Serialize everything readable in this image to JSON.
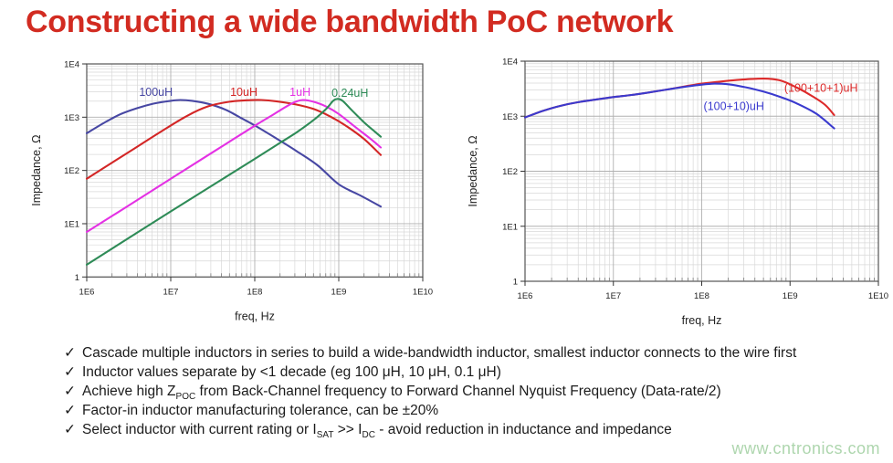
{
  "title": {
    "text": "Constructing a wide bandwidth PoC network",
    "color": "#d22b21"
  },
  "watermark": {
    "text": "www.cntronics.com",
    "color": "#aed6ae"
  },
  "bullets": {
    "marker": "✓",
    "items": [
      {
        "segments": [
          {
            "t": "Cascade multiple inductors in series to build a wide-bandwidth inductor, smallest inductor connects to the wire first"
          }
        ]
      },
      {
        "segments": [
          {
            "t": "Inductor values separate by <1 decade (eg 100 μH, 10 μH, 0.1 μH)"
          }
        ]
      },
      {
        "segments": [
          {
            "t": "Achieve high Z"
          },
          {
            "sub": "POC"
          },
          {
            "t": " from Back-Channel frequency to Forward Channel Nyquist Frequency (Data-rate/2)"
          }
        ]
      },
      {
        "segments": [
          {
            "t": "Factor-in inductor manufacturing tolerance, can be ±20%"
          }
        ]
      },
      {
        "segments": [
          {
            "t": "Select inductor with current rating or I"
          },
          {
            "sub": "SAT"
          },
          {
            "t": " >> I"
          },
          {
            "sub": "DC"
          },
          {
            "t": " - avoid reduction in inductance and impedance"
          }
        ]
      }
    ]
  },
  "chart_data": [
    {
      "type": "line",
      "title": "",
      "xlabel": "freq, Hz",
      "ylabel": "Impedance, Ω",
      "x_scale": "log",
      "y_scale": "log",
      "xlim": [
        1000000.0,
        10000000000.0
      ],
      "ylim": [
        1,
        10000.0
      ],
      "grid": true,
      "x_ticks": [
        [
          1000000.0,
          "1E6"
        ],
        [
          10000000.0,
          "1E7"
        ],
        [
          100000000.0,
          "1E8"
        ],
        [
          1000000000.0,
          "1E9"
        ],
        [
          10000000000.0,
          "1E10"
        ]
      ],
      "y_ticks": [
        [
          1,
          "1"
        ],
        [
          10,
          "1E1"
        ],
        [
          100,
          "1E2"
        ],
        [
          1000,
          "1E3"
        ],
        [
          10000,
          "1E4"
        ]
      ],
      "series": [
        {
          "name": "100uH",
          "color": "#4747a3",
          "points": [
            [
              1000000.0,
              500
            ],
            [
              1600000.0,
              780
            ],
            [
              2500000.0,
              1130
            ],
            [
              4000000.0,
              1480
            ],
            [
              6300000.0,
              1800
            ],
            [
              10000000.0,
              2030
            ],
            [
              13000000.0,
              2100
            ],
            [
              18000000.0,
              2030
            ],
            [
              28000000.0,
              1780
            ],
            [
              45000000.0,
              1380
            ],
            [
              70000000.0,
              950
            ],
            [
              100000000.0,
              700
            ],
            [
              180000000.0,
              400
            ],
            [
              316000000.0,
              230
            ],
            [
              560000000.0,
              125
            ],
            [
              1000000000.0,
              55
            ],
            [
              1800000000.0,
              34
            ],
            [
              3160000000.0,
              21
            ]
          ]
        },
        {
          "name": "10uH",
          "color": "#d32626",
          "points": [
            [
              1000000.0,
              70
            ],
            [
              2000000.0,
              140
            ],
            [
              4000000.0,
              280
            ],
            [
              8000000.0,
              560
            ],
            [
              16000000.0,
              1080
            ],
            [
              28000000.0,
              1600
            ],
            [
              50000000.0,
              1950
            ],
            [
              80000000.0,
              2080
            ],
            [
              120000000.0,
              2100
            ],
            [
              180000000.0,
              1990
            ],
            [
              300000000.0,
              1750
            ],
            [
              500000000.0,
              1430
            ],
            [
              800000000.0,
              1020
            ],
            [
              1200000000.0,
              700
            ],
            [
              2000000000.0,
              390
            ],
            [
              3160000000.0,
              195
            ]
          ]
        },
        {
          "name": "1uH",
          "color": "#e431e4",
          "points": [
            [
              1000000.0,
              7
            ],
            [
              3160000.0,
              22
            ],
            [
              10000000.0,
              70
            ],
            [
              31600000.0,
              220
            ],
            [
              100000000.0,
              690
            ],
            [
              160000000.0,
              1080
            ],
            [
              240000000.0,
              1600
            ],
            [
              320000000.0,
              2000
            ],
            [
              380000000.0,
              2100
            ],
            [
              500000000.0,
              1950
            ],
            [
              700000000.0,
              1600
            ],
            [
              1000000000.0,
              1150
            ],
            [
              1600000000.0,
              640
            ],
            [
              2400000000.0,
              390
            ],
            [
              3160000000.0,
              270
            ]
          ]
        },
        {
          "name": "0.24uH",
          "color": "#2e8b57",
          "points": [
            [
              1000000.0,
              1.7
            ],
            [
              10000000.0,
              17
            ],
            [
              100000000.0,
              165
            ],
            [
              200000000.0,
              330
            ],
            [
              316000000.0,
              520
            ],
            [
              500000000.0,
              880
            ],
            [
              700000000.0,
              1400
            ],
            [
              850000000.0,
              2000
            ],
            [
              950000000.0,
              2200
            ],
            [
              1100000000.0,
              2050
            ],
            [
              1400000000.0,
              1400
            ],
            [
              2000000000.0,
              800
            ],
            [
              2600000000.0,
              560
            ],
            [
              3160000000.0,
              430
            ]
          ]
        }
      ],
      "labels": [
        {
          "text": "100uH",
          "color": "#4747a3",
          "f": 4200000.0,
          "z": 2500
        },
        {
          "text": "10uH",
          "color": "#d32626",
          "f": 51000000.0,
          "z": 2500
        },
        {
          "text": "1uH",
          "color": "#e431e4",
          "f": 260000000.0,
          "z": 2500
        },
        {
          "text": "0.24uH",
          "color": "#2e8b57",
          "f": 820000000.0,
          "z": 2400
        }
      ]
    },
    {
      "type": "line",
      "title": "",
      "xlabel": "freq, Hz",
      "ylabel": "Impedance, Ω",
      "x_scale": "log",
      "y_scale": "log",
      "xlim": [
        1000000.0,
        10000000000.0
      ],
      "ylim": [
        1,
        10000.0
      ],
      "grid": true,
      "x_ticks": [
        [
          1000000.0,
          "1E6"
        ],
        [
          10000000.0,
          "1E7"
        ],
        [
          100000000.0,
          "1E8"
        ],
        [
          1000000000.0,
          "1E9"
        ],
        [
          10000000000.0,
          "1E10"
        ]
      ],
      "y_ticks": [
        [
          1,
          "1"
        ],
        [
          10,
          "1E1"
        ],
        [
          100,
          "1E2"
        ],
        [
          1000,
          "1E3"
        ],
        [
          10000,
          "1E4"
        ]
      ],
      "series": [
        {
          "name": "(100+10+1)uH",
          "color": "#dd2a2a",
          "points": [
            [
              1000000.0,
              950
            ],
            [
              1600000.0,
              1250
            ],
            [
              2500000.0,
              1540
            ],
            [
              4000000.0,
              1800
            ],
            [
              6300000.0,
              2000
            ],
            [
              10000000.0,
              2230
            ],
            [
              16000000.0,
              2430
            ],
            [
              25000000.0,
              2700
            ],
            [
              40000000.0,
              3050
            ],
            [
              63000000.0,
              3450
            ],
            [
              100000000.0,
              3900
            ],
            [
              160000000.0,
              4250
            ],
            [
              250000000.0,
              4550
            ],
            [
              400000000.0,
              4780
            ],
            [
              560000000.0,
              4800
            ],
            [
              800000000.0,
              4400
            ],
            [
              1200000000.0,
              3300
            ],
            [
              1800000000.0,
              2300
            ],
            [
              2500000000.0,
              1600
            ],
            [
              3160000000.0,
              1050
            ]
          ]
        },
        {
          "name": "(100+10)uH",
          "color": "#3a3ace",
          "points": [
            [
              1000000.0,
              950
            ],
            [
              1600000.0,
              1250
            ],
            [
              2500000.0,
              1540
            ],
            [
              4000000.0,
              1800
            ],
            [
              6300000.0,
              2000
            ],
            [
              10000000.0,
              2230
            ],
            [
              16000000.0,
              2430
            ],
            [
              25000000.0,
              2700
            ],
            [
              40000000.0,
              3050
            ],
            [
              63000000.0,
              3400
            ],
            [
              100000000.0,
              3750
            ],
            [
              140000000.0,
              3900
            ],
            [
              200000000.0,
              3800
            ],
            [
              316000000.0,
              3350
            ],
            [
              500000000.0,
              2800
            ],
            [
              800000000.0,
              2200
            ],
            [
              1200000000.0,
              1700
            ],
            [
              2000000000.0,
              1100
            ],
            [
              3160000000.0,
              600
            ]
          ]
        }
      ],
      "labels": [
        {
          "text": "(100+10+1)uH",
          "color": "#dd2a2a",
          "f": 860000000.0,
          "z": 2800
        },
        {
          "text": "(100+10)uH",
          "color": "#3a3ace",
          "f": 105000000.0,
          "z": 1300
        }
      ]
    }
  ]
}
